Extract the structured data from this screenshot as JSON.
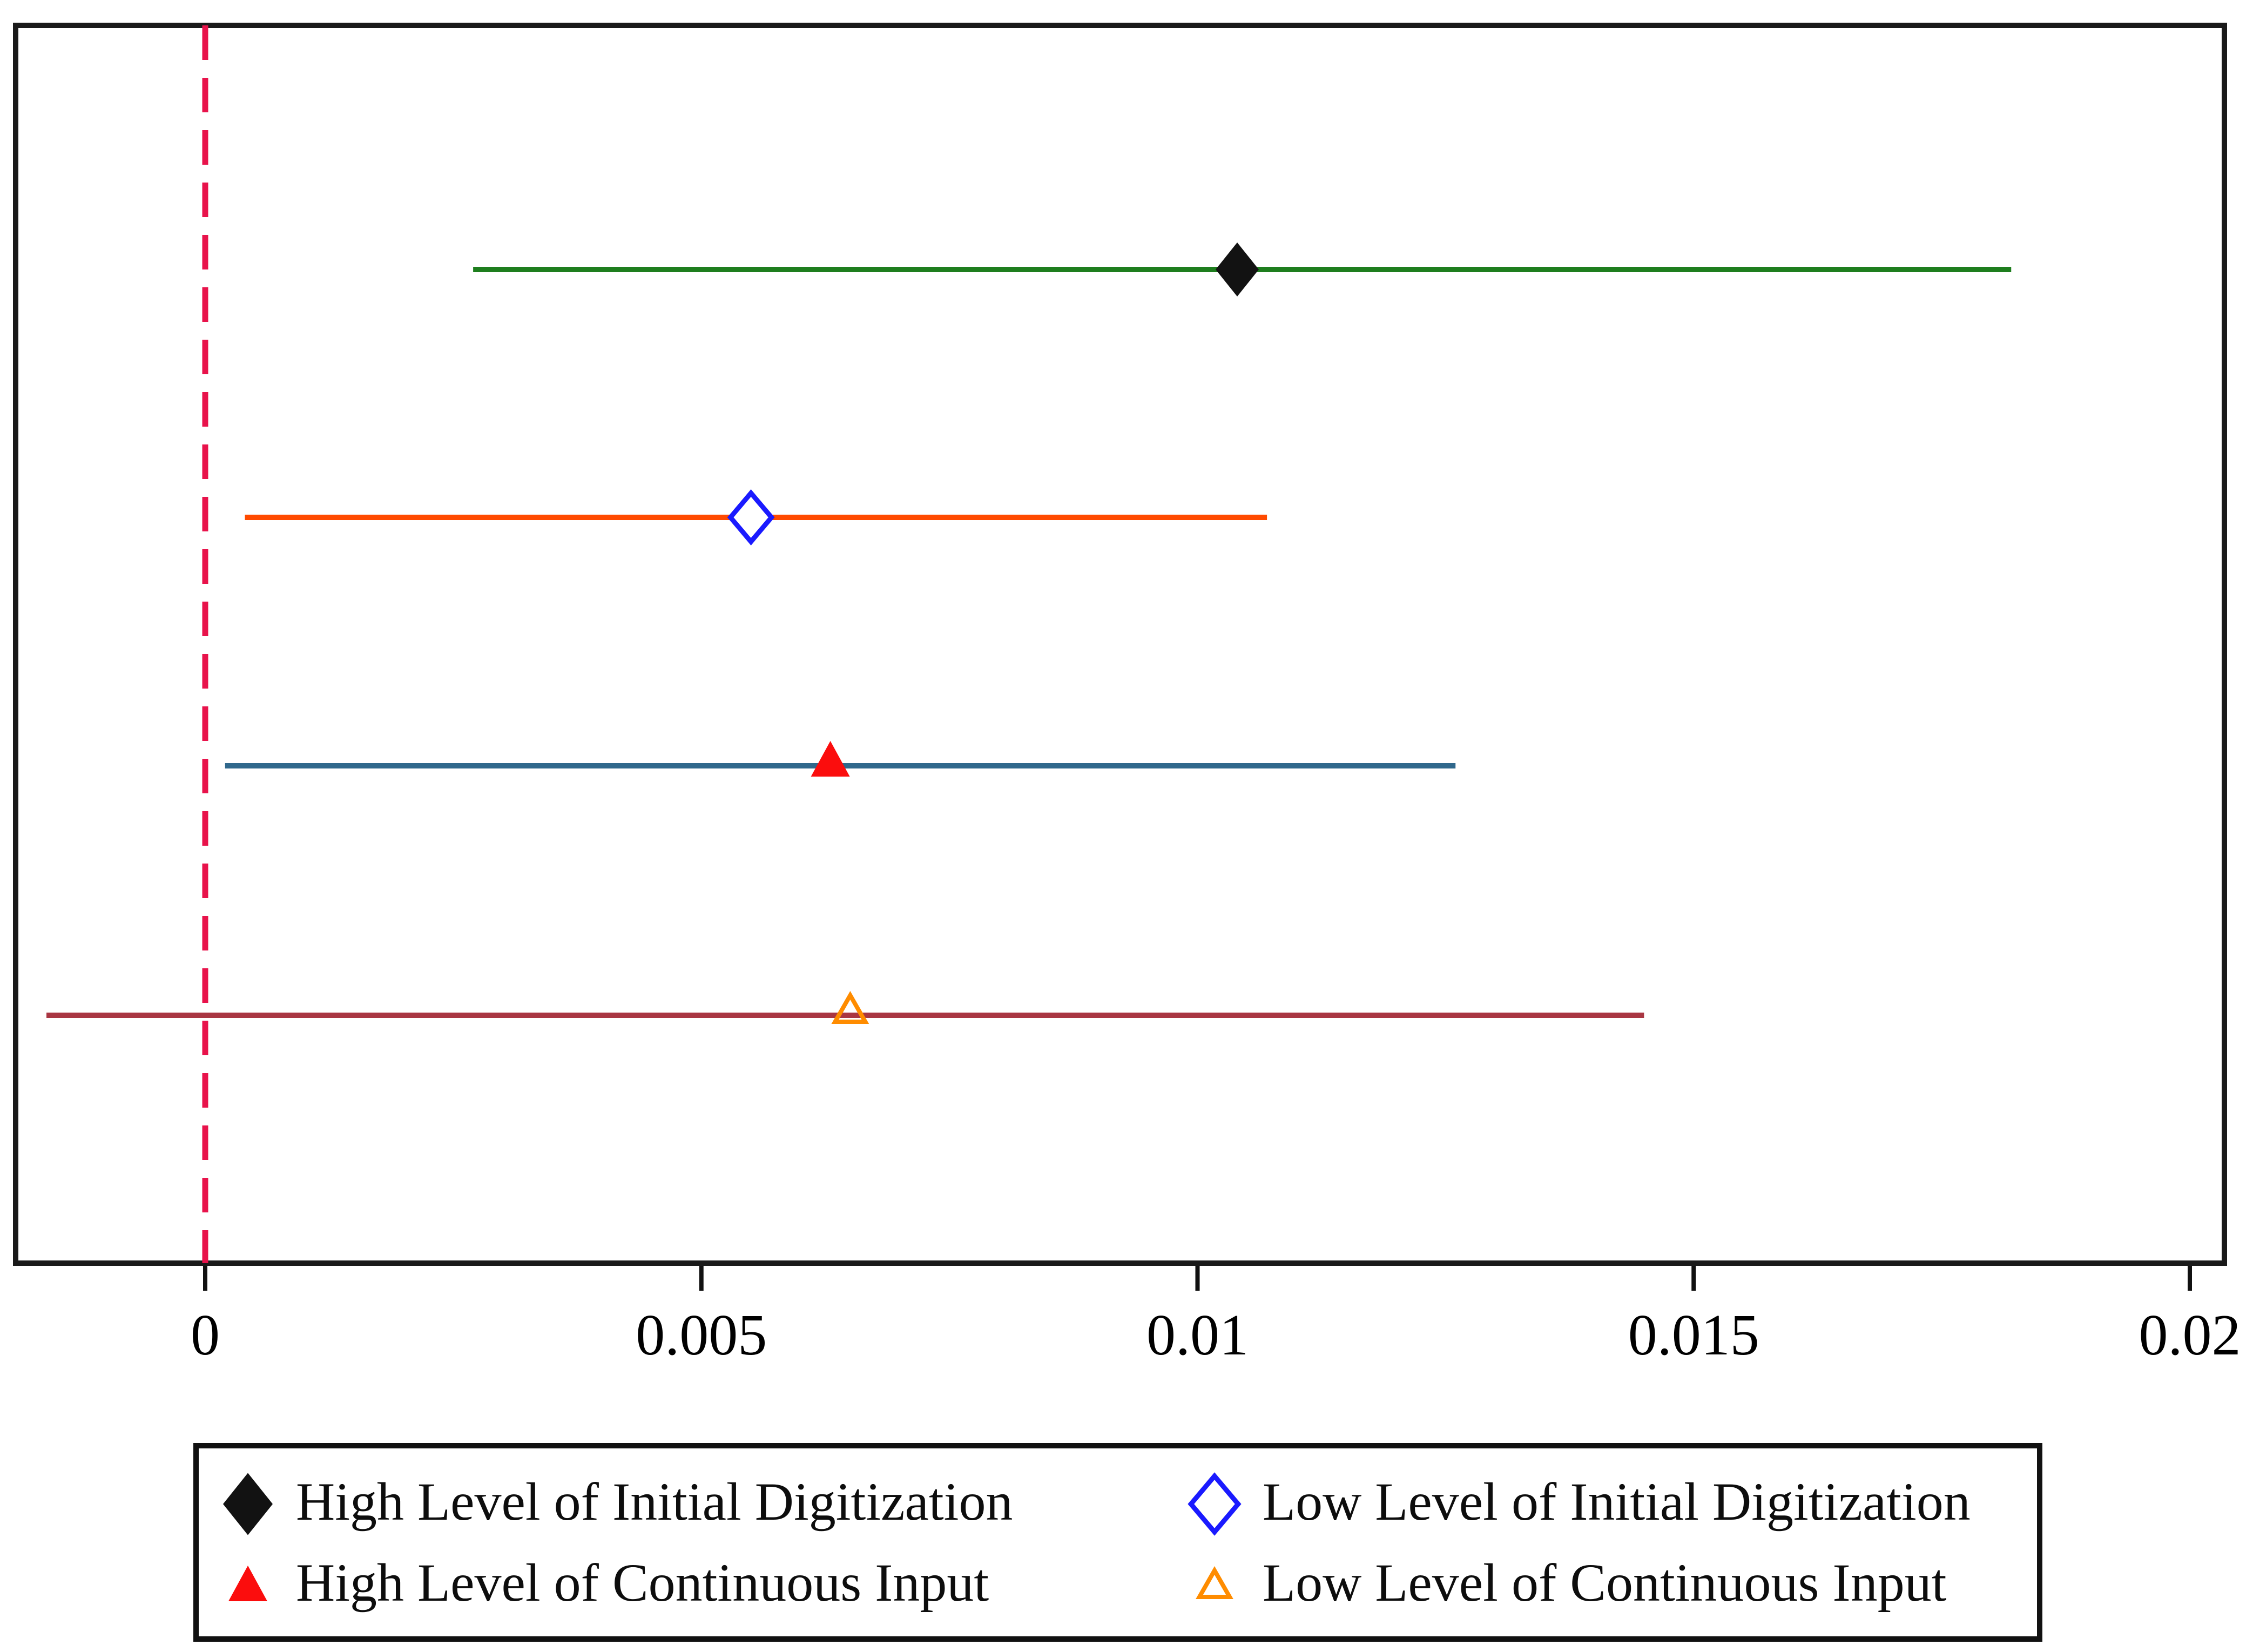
{
  "figure": {
    "background": "#ffffff",
    "plot_border_color": "#1a1a1a"
  },
  "chart_data": {
    "type": "scatter",
    "subtype": "coefficient-plot-with-confidence-intervals",
    "orientation": "horizontal",
    "title": "",
    "xlabel": "",
    "ylabel": "",
    "xlim": [
      -0.0019,
      0.0203
    ],
    "grid": false,
    "reference_line": {
      "x": 0,
      "color": "#e8134b",
      "style": "dashed"
    },
    "xticks": [
      0,
      0.005,
      0.01,
      0.015,
      0.02
    ],
    "xtick_labels": [
      "0",
      "0.005",
      "0.01",
      "0.015",
      "0.02"
    ],
    "series": [
      {
        "name": "High Level of Initial Digitization",
        "estimate": 0.0104,
        "ci_low": 0.0027,
        "ci_high": 0.0182,
        "line_color": "#1e7e1e",
        "marker": "filled-diamond",
        "marker_color": "#121212"
      },
      {
        "name": "Low Level of Initial Digitization",
        "estimate": 0.0055,
        "ci_low": 0.0004,
        "ci_high": 0.0107,
        "line_color": "#ff4a00",
        "marker": "open-diamond",
        "marker_color": "#1a1aff"
      },
      {
        "name": "High Level of Continuous Input",
        "estimate": 0.0063,
        "ci_low": 0.0002,
        "ci_high": 0.0126,
        "line_color": "#30688c",
        "marker": "filled-triangle",
        "marker_color": "#fb0d0d"
      },
      {
        "name": "Low Level of Continuous Input",
        "estimate": 0.0065,
        "ci_low": -0.0016,
        "ci_high": 0.0145,
        "line_color": "#a93642",
        "marker": "open-triangle",
        "marker_color": "#ff8c00"
      }
    ],
    "legend_position": "bottom"
  },
  "legend": {
    "items": [
      {
        "label": "High Level of Initial Digitization",
        "marker": "filled-diamond",
        "color": "#121212"
      },
      {
        "label": "Low Level of Initial Digitization",
        "marker": "open-diamond",
        "color": "#1a1aff"
      },
      {
        "label": "High Level of Continuous Input",
        "marker": "filled-triangle",
        "color": "#fb0d0d"
      },
      {
        "label": "Low Level of Continuous Input",
        "marker": "open-triangle",
        "color": "#ff8c00"
      }
    ]
  }
}
